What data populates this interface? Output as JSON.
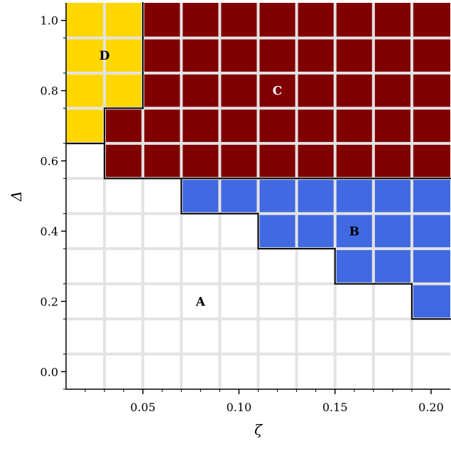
{
  "chart_data": {
    "type": "heatmap",
    "title": "",
    "xlabel": "ζ",
    "ylabel": "Δ",
    "xlim": [
      0.01,
      0.21
    ],
    "ylim": [
      -0.05,
      1.05
    ],
    "x_ticks": [
      "0.05",
      "0.10",
      "0.15",
      "0.20"
    ],
    "x_tick_values": [
      0.05,
      0.1,
      0.15,
      0.2
    ],
    "y_ticks": [
      "0.0",
      "0.2",
      "0.4",
      "0.6",
      "0.8",
      "1.0"
    ],
    "y_tick_values": [
      0.0,
      0.2,
      0.4,
      0.6,
      0.8,
      1.0
    ],
    "x_centers": [
      0.02,
      0.04,
      0.06,
      0.08,
      0.1,
      0.12,
      0.14,
      0.16,
      0.18,
      0.2
    ],
    "y_centers": [
      0.0,
      0.1,
      0.2,
      0.3,
      0.4,
      0.5,
      0.6,
      0.7,
      0.8,
      0.9,
      1.0
    ],
    "grid": true,
    "regions": [
      {
        "name": "A",
        "color": "#ffffff",
        "label_color": "#000000",
        "label_at": [
          0.08,
          0.2
        ]
      },
      {
        "name": "B",
        "color": "#4169e1",
        "label_color": "#000000",
        "label_at": [
          0.16,
          0.4
        ]
      },
      {
        "name": "C",
        "color": "#800000",
        "label_color": "#ffffff",
        "label_at": [
          0.12,
          0.8
        ]
      },
      {
        "name": "D",
        "color": "#ffd700",
        "label_color": "#000000",
        "label_at": [
          0.03,
          0.9
        ]
      }
    ],
    "cells": [
      "DDCCCCCCCC",
      "DDCCCCCCCC",
      "DDCCCCCCCC",
      "DCCCCCCCCC",
      "ACCCCCCCCC",
      "AAABBBBBBB",
      "AAAAABBBBB",
      "AAAAAAABBB",
      "AAAAAAAAAB",
      "AAAAAAAAAA",
      "AAAAAAAAAA"
    ]
  }
}
